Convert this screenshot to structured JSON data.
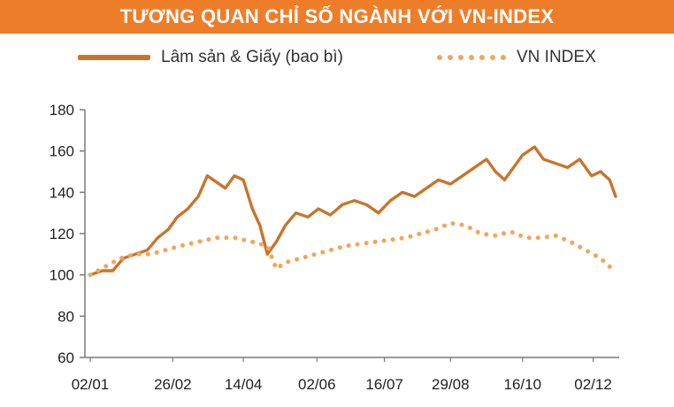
{
  "title": "TƯƠNG QUAN CHỈ SỐ NGÀNH VỚI VN-INDEX",
  "colors": {
    "title_bg": "#ee7d2a",
    "series1": "#c8752c",
    "series2": "#f2a55c"
  },
  "chart_data": {
    "type": "line",
    "title": "TƯƠNG QUAN CHỈ SỐ NGÀNH VỚI VN-INDEX",
    "xlabel": "",
    "ylabel": "",
    "ylim": [
      60,
      180
    ],
    "yticks": [
      180,
      160,
      140,
      120,
      100,
      80,
      60
    ],
    "xlim": [
      0,
      350
    ],
    "xticks": [
      {
        "label": "02/01",
        "x": 0
      },
      {
        "label": "26/02",
        "x": 55
      },
      {
        "label": "14/04",
        "x": 102
      },
      {
        "label": "02/06",
        "x": 151
      },
      {
        "label": "16/07",
        "x": 196
      },
      {
        "label": "29/08",
        "x": 240
      },
      {
        "label": "16/10",
        "x": 288
      },
      {
        "label": "02/12",
        "x": 335
      }
    ],
    "legend_position": "top",
    "grid": false,
    "series": [
      {
        "name": "Lâm sản & Giấy (bao bì)",
        "style": "solid",
        "x": [
          0,
          8,
          15,
          22,
          30,
          38,
          45,
          52,
          58,
          65,
          72,
          78,
          84,
          90,
          96,
          102,
          108,
          113,
          118,
          124,
          130,
          137,
          145,
          152,
          160,
          168,
          176,
          184,
          192,
          200,
          208,
          216,
          224,
          232,
          240,
          248,
          256,
          264,
          270,
          276,
          282,
          288,
          296,
          302,
          310,
          318,
          326,
          334,
          340,
          346,
          350
        ],
        "y": [
          100,
          102,
          102,
          108,
          110,
          112,
          118,
          122,
          128,
          132,
          138,
          148,
          145,
          142,
          148,
          146,
          132,
          124,
          110,
          116,
          124,
          130,
          128,
          132,
          129,
          134,
          136,
          134,
          130,
          136,
          140,
          138,
          142,
          146,
          144,
          148,
          152,
          156,
          150,
          146,
          152,
          158,
          162,
          156,
          154,
          152,
          156,
          148,
          150,
          146,
          138
        ]
      },
      {
        "name": "VN INDEX",
        "style": "dotted",
        "x": [
          0,
          10,
          20,
          30,
          40,
          50,
          60,
          72,
          84,
          96,
          108,
          118,
          124,
          130,
          140,
          150,
          160,
          170,
          180,
          190,
          200,
          210,
          220,
          230,
          240,
          250,
          260,
          270,
          280,
          290,
          300,
          310,
          320,
          330,
          340,
          346,
          350
        ],
        "y": [
          100,
          104,
          108,
          110,
          110,
          112,
          114,
          116,
          118,
          118,
          116,
          114,
          103,
          106,
          108,
          110,
          112,
          114,
          115,
          116,
          117,
          118,
          120,
          122,
          125,
          124,
          120,
          119,
          121,
          118,
          118,
          119,
          116,
          112,
          108,
          104,
          106
        ]
      }
    ]
  }
}
